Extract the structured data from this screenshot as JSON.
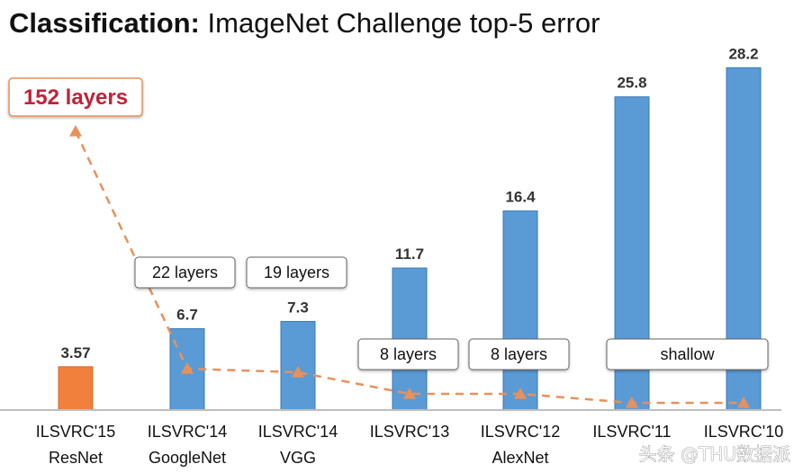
{
  "chart_data": {
    "type": "bar",
    "title_bold": "Classification:",
    "title_rest": " ImageNet Challenge top-5 error",
    "ylabel": "",
    "xlabel": "",
    "ylim": [
      0,
      30
    ],
    "categories": [
      [
        "ILSVRC'15",
        "ResNet"
      ],
      [
        "ILSVRC'14",
        "GoogleNet"
      ],
      [
        "ILSVRC'14",
        "VGG"
      ],
      [
        "ILSVRC'13",
        ""
      ],
      [
        "ILSVRC'12",
        "AlexNet"
      ],
      [
        "ILSVRC'11",
        ""
      ],
      [
        "ILSVRC'10",
        ""
      ]
    ],
    "values": [
      3.57,
      6.7,
      7.3,
      11.7,
      16.4,
      25.8,
      28.2
    ],
    "value_labels": [
      "3.57",
      "6.7",
      "7.3",
      "11.7",
      "16.4",
      "25.8",
      "28.2"
    ],
    "layers_series": {
      "name": "layers",
      "values": [
        152,
        22,
        19,
        8,
        8,
        0,
        0
      ]
    },
    "annotations": [
      {
        "text": "152 layers",
        "category_index": 0
      },
      {
        "text": "22 layers",
        "category_index": 1
      },
      {
        "text": "19 layers",
        "category_index": 2
      },
      {
        "text": "8 layers",
        "category_index": 3
      },
      {
        "text": "8 layers",
        "category_index": 4
      },
      {
        "text": "shallow",
        "category_index": 5
      }
    ],
    "colors": {
      "highlight_bar": "#f0803c",
      "bar": "#5b9bd5",
      "bar_border": "#3a78b8",
      "layers_line": "#e8915a",
      "big_annotation": "#c0223a",
      "axis": "#bfbfbf"
    }
  },
  "watermark": "头条 @THU数据派"
}
